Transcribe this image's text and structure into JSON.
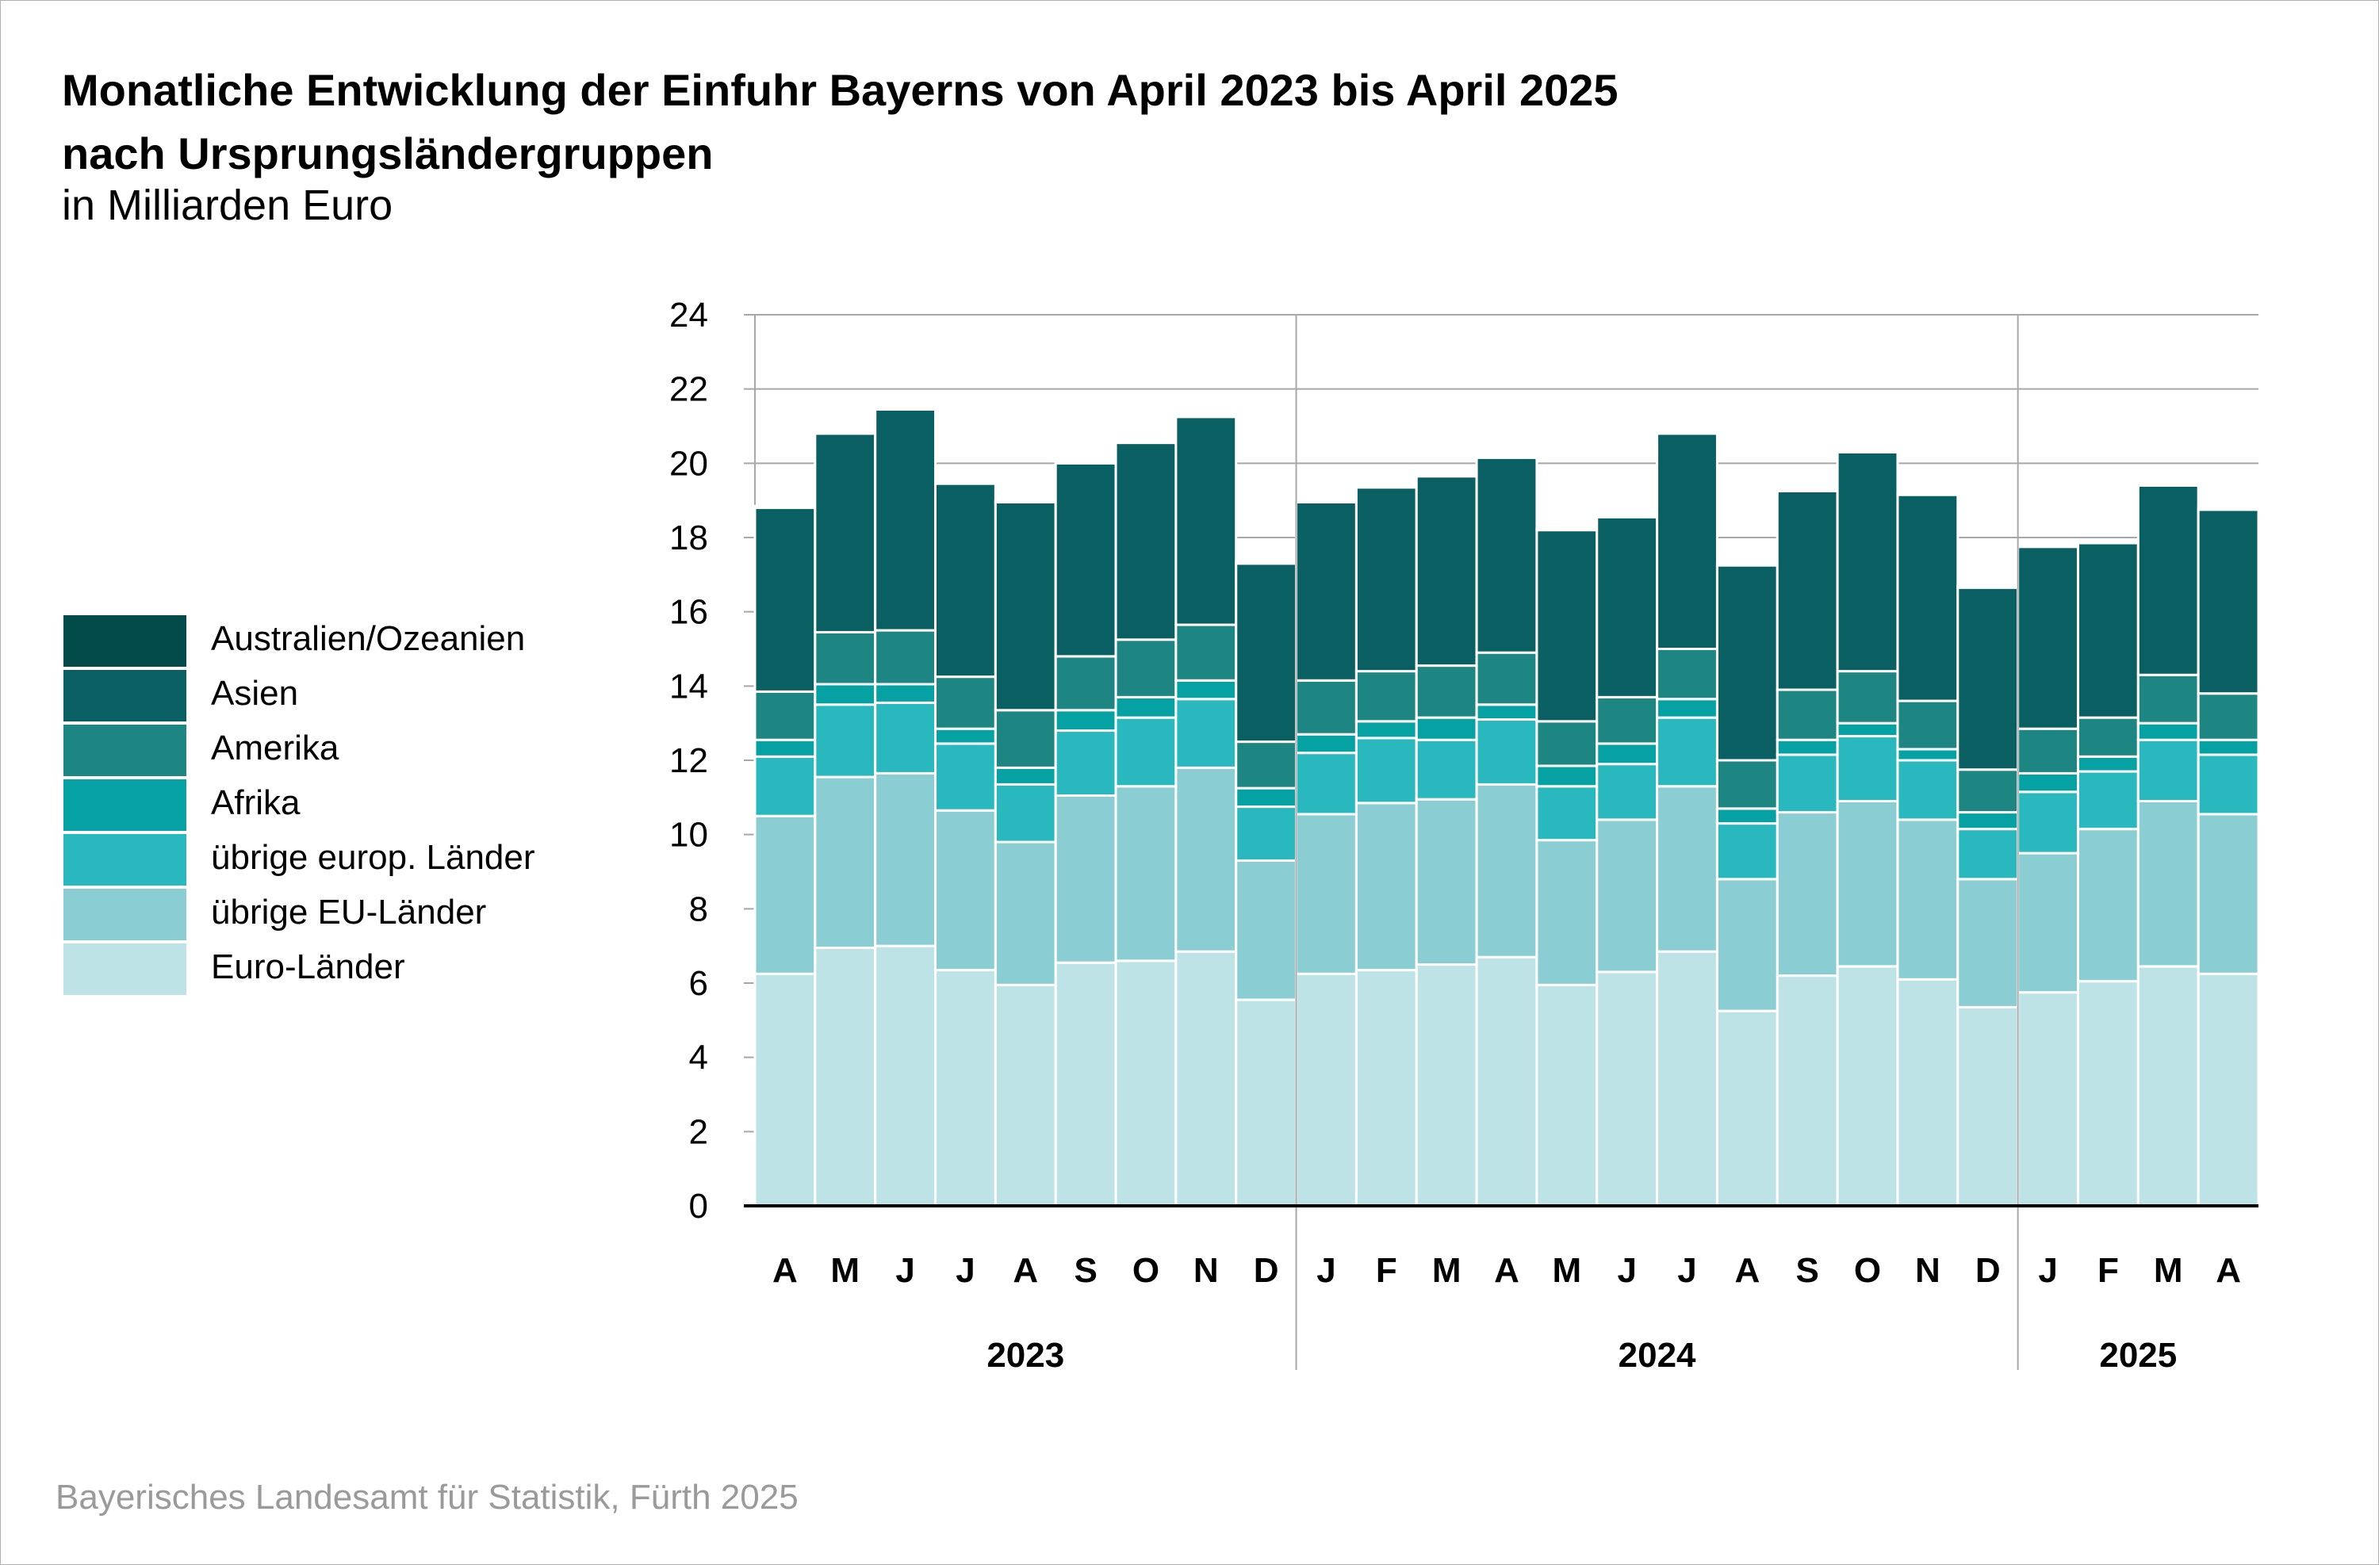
{
  "title": {
    "line1": "Monatliche Entwicklung der Einfuhr Bayerns von April 2023 bis April 2025",
    "line2": "nach Ursprungsländergruppen",
    "subtitle": "in Milliarden Euro"
  },
  "footer": "Bayerisches Landesamt für Statistik, Fürth 2025",
  "legend": [
    {
      "label": "Australien/Ozeanien",
      "color": "#034a4a"
    },
    {
      "label": "Asien",
      "color": "#0a5f63"
    },
    {
      "label": "Amerika",
      "color": "#1d8582"
    },
    {
      "label": "Afrika",
      "color": "#06a1a3"
    },
    {
      "label": "übrige europ. Länder",
      "color": "#29b8bd"
    },
    {
      "label": "übrige EU-Länder",
      "color": "#8acdd3"
    },
    {
      "label": "Euro-Länder",
      "color": "#bde3e7"
    }
  ],
  "chart_data": {
    "type": "bar",
    "stacked": true,
    "unit": "Milliarden Euro",
    "ylim": [
      0,
      24
    ],
    "yticks": [
      0,
      2,
      4,
      6,
      8,
      10,
      12,
      14,
      16,
      18,
      20,
      22,
      24
    ],
    "grid": true,
    "categories": [
      "A",
      "M",
      "J",
      "J",
      "A",
      "S",
      "O",
      "N",
      "D",
      "J",
      "F",
      "M",
      "A",
      "M",
      "J",
      "J",
      "A",
      "S",
      "O",
      "N",
      "D",
      "J",
      "F",
      "M",
      "A"
    ],
    "year_groups": [
      {
        "label": "2023",
        "count": 9
      },
      {
        "label": "2024",
        "count": 12
      },
      {
        "label": "2025",
        "count": 4
      }
    ],
    "series": [
      {
        "name": "Euro-Länder",
        "color": "#bde3e7",
        "values": [
          6.25,
          6.95,
          7.0,
          6.35,
          5.95,
          6.55,
          6.6,
          6.85,
          5.55,
          6.25,
          6.35,
          6.5,
          6.7,
          5.95,
          6.3,
          6.85,
          5.25,
          6.2,
          6.45,
          6.1,
          5.35,
          5.75,
          6.05,
          6.45,
          6.25
        ]
      },
      {
        "name": "übrige EU-Länder",
        "color": "#8acdd3",
        "values": [
          4.25,
          4.6,
          4.65,
          4.3,
          3.85,
          4.5,
          4.7,
          4.95,
          3.75,
          4.3,
          4.5,
          4.45,
          4.65,
          3.9,
          4.1,
          4.45,
          3.55,
          4.4,
          4.45,
          4.3,
          3.45,
          3.75,
          4.1,
          4.45,
          4.3
        ]
      },
      {
        "name": "übrige europ. Länder",
        "color": "#29b8bd",
        "values": [
          1.6,
          1.95,
          1.9,
          1.8,
          1.55,
          1.75,
          1.85,
          1.85,
          1.45,
          1.65,
          1.75,
          1.6,
          1.75,
          1.45,
          1.5,
          1.85,
          1.5,
          1.55,
          1.75,
          1.6,
          1.35,
          1.65,
          1.55,
          1.65,
          1.6
        ]
      },
      {
        "name": "Afrika",
        "color": "#06a1a3",
        "values": [
          0.45,
          0.55,
          0.5,
          0.4,
          0.45,
          0.55,
          0.55,
          0.5,
          0.5,
          0.5,
          0.45,
          0.6,
          0.4,
          0.55,
          0.55,
          0.5,
          0.4,
          0.4,
          0.35,
          0.3,
          0.45,
          0.5,
          0.4,
          0.45,
          0.4
        ]
      },
      {
        "name": "Amerika",
        "color": "#1d8582",
        "values": [
          1.3,
          1.4,
          1.45,
          1.4,
          1.55,
          1.45,
          1.55,
          1.5,
          1.25,
          1.45,
          1.35,
          1.4,
          1.4,
          1.2,
          1.25,
          1.35,
          1.3,
          1.35,
          1.4,
          1.3,
          1.15,
          1.2,
          1.05,
          1.3,
          1.25
        ]
      },
      {
        "name": "Asien",
        "color": "#0a5f63",
        "values": [
          4.95,
          5.35,
          5.95,
          5.2,
          5.6,
          5.2,
          5.3,
          5.6,
          4.8,
          4.8,
          4.95,
          5.1,
          5.25,
          5.15,
          4.85,
          5.8,
          5.25,
          5.35,
          5.9,
          5.55,
          4.9,
          4.9,
          4.7,
          5.1,
          4.95
        ]
      },
      {
        "name": "Australien/Ozeanien",
        "color": "#034a4a",
        "values": [
          0.05,
          0.05,
          0.05,
          0.05,
          0.05,
          0.05,
          0.05,
          0.05,
          0.05,
          0.05,
          0.05,
          0.05,
          0.05,
          0.05,
          0.05,
          0.05,
          0.05,
          0.05,
          0.05,
          0.05,
          0.05,
          0.05,
          0.05,
          0.05,
          0.05
        ]
      }
    ]
  }
}
